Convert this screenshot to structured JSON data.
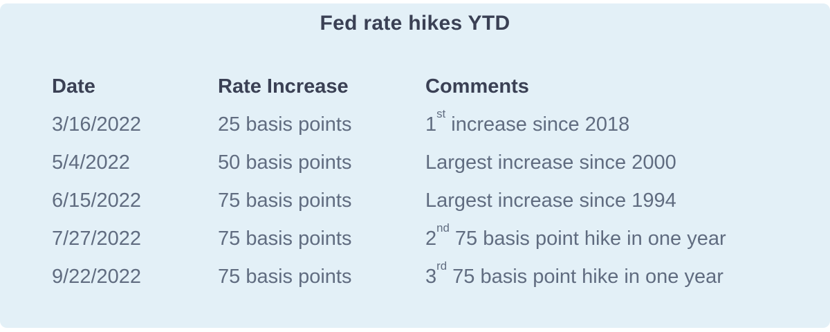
{
  "colors": {
    "page_bg": "#ffffff",
    "panel_bg": "#e3f0f7",
    "heading": "#3a4054",
    "body": "#606c80"
  },
  "panel": {
    "title": "Fed rate hikes YTD"
  },
  "table": {
    "headers": [
      "Date",
      "Rate Increase",
      "Comments"
    ],
    "rows": [
      {
        "date": "3/16/2022",
        "rate": "25 basis points",
        "comment_num": "1",
        "comment_sup": "st",
        "comment_rest": " increase since 2018"
      },
      {
        "date": "5/4/2022",
        "rate": "50 basis points",
        "comment_num": "",
        "comment_sup": "",
        "comment_rest": "Largest increase since 2000"
      },
      {
        "date": "6/15/2022",
        "rate": "75 basis points",
        "comment_num": "",
        "comment_sup": "",
        "comment_rest": "Largest increase since 1994"
      },
      {
        "date": "7/27/2022",
        "rate": "75 basis points",
        "comment_num": "2",
        "comment_sup": "nd",
        "comment_rest": " 75 basis point hike in one year"
      },
      {
        "date": "9/22/2022",
        "rate": "75 basis points",
        "comment_num": "3",
        "comment_sup": "rd",
        "comment_rest": " 75 basis point hike in one year"
      }
    ]
  },
  "chart_data": {
    "type": "table",
    "title": "Fed rate hikes YTD",
    "columns": [
      "Date",
      "Rate Increase",
      "Comments"
    ],
    "rows": [
      [
        "3/16/2022",
        "25 basis points",
        "1st increase since 2018"
      ],
      [
        "5/4/2022",
        "50 basis points",
        "Largest increase since 2000"
      ],
      [
        "6/15/2022",
        "75 basis points",
        "Largest increase since 1994"
      ],
      [
        "7/27/2022",
        "75 basis points",
        "2nd 75 basis point hike in one year"
      ],
      [
        "9/22/2022",
        "75 basis points",
        "3rd 75 basis point hike in one year"
      ]
    ],
    "rate_increase_basis_points": [
      25,
      50,
      75,
      75,
      75
    ]
  }
}
